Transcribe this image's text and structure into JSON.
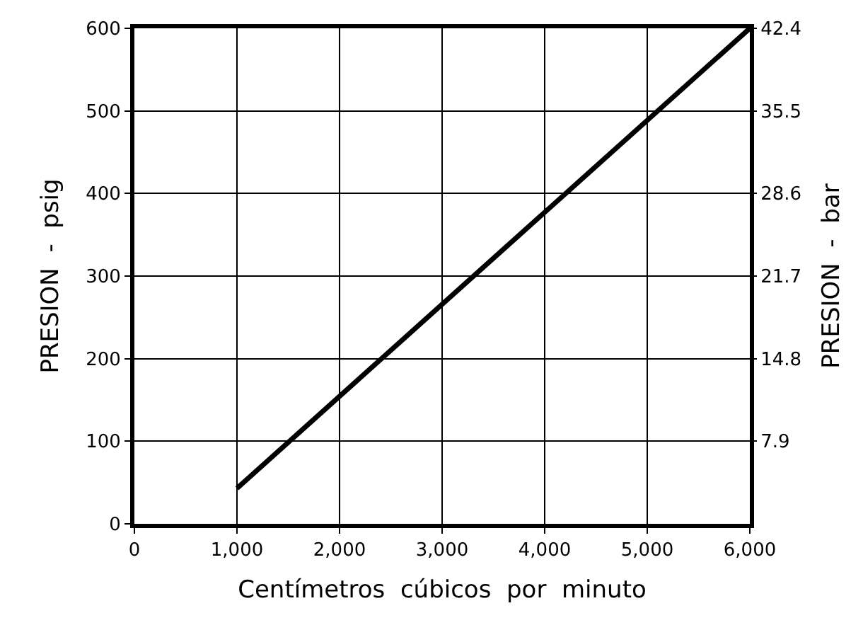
{
  "chart_data": {
    "type": "line",
    "xlabel": "Centímetros  cúbicos  por  minuto",
    "ylabel": "PRESION  -  psig",
    "y2label": "PRESION  -  bar",
    "series": [
      {
        "color": "#000000",
        "x": [
          1000,
          6000
        ],
        "values": [
          43,
          600
        ]
      }
    ],
    "xlim": [
      0,
      6000
    ],
    "xticks": [
      0,
      {
        "value": 1000,
        "label": "1,000"
      },
      {
        "value": 2000,
        "label": "2,000"
      },
      {
        "value": 3000,
        "label": "3,000"
      },
      {
        "value": 4000,
        "label": "4,000"
      },
      {
        "value": 5000,
        "label": "5,000"
      },
      {
        "value": 6000,
        "label": "6,000"
      }
    ],
    "ylim": [
      0,
      600
    ],
    "yticks": [
      0,
      100,
      200,
      300,
      400,
      500,
      600
    ],
    "y2lim": [
      1.0,
      42.4
    ],
    "y2ticks": [
      7.9,
      14.8,
      21.7,
      28.6,
      35.5,
      42.4
    ],
    "grid": true,
    "marker": "none",
    "line_style": "solid"
  }
}
